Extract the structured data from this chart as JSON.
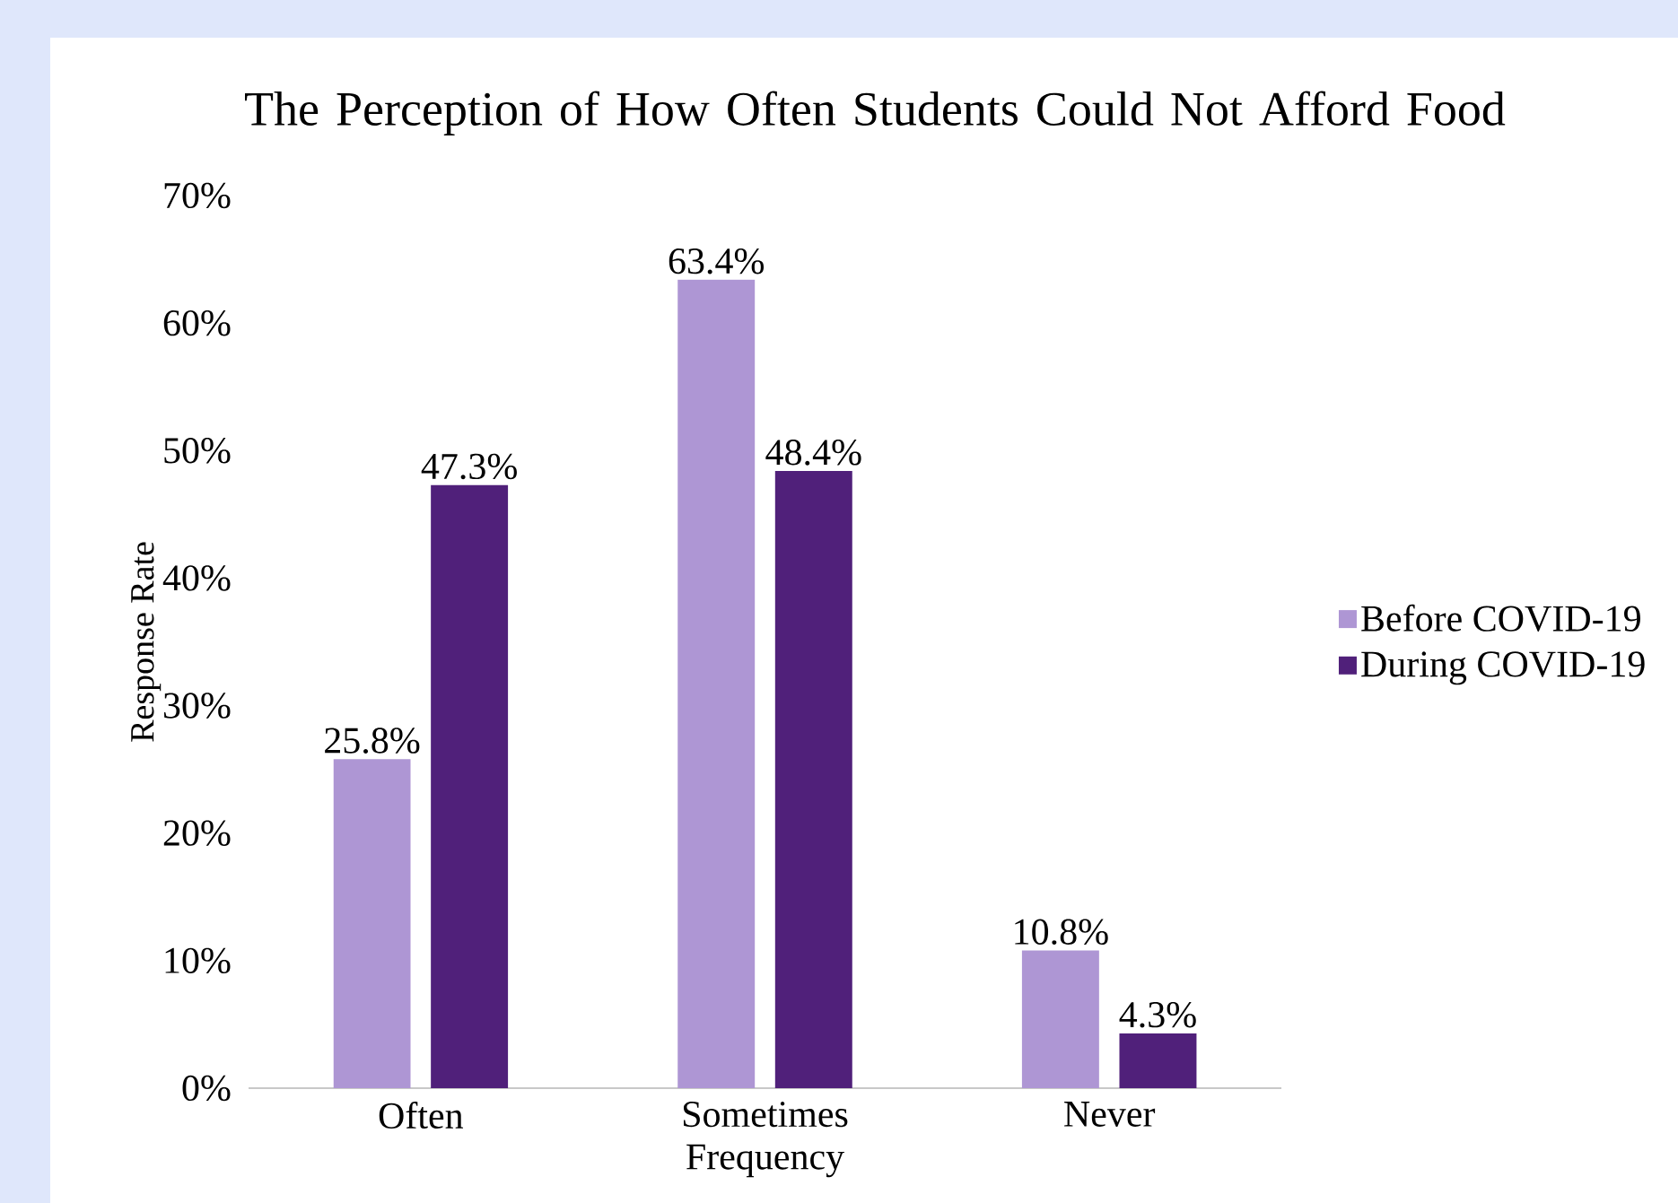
{
  "chart_data": {
    "type": "bar",
    "title": "The Perception of How Often Students Could Not Afford Food",
    "xlabel": "Frequency",
    "ylabel": "Response Rate",
    "categories": [
      "Often",
      "Sometimes",
      "Never"
    ],
    "series": [
      {
        "name": "Before COVID-19",
        "color": "#ae96d4",
        "values": [
          25.8,
          63.4,
          10.8
        ],
        "value_labels": [
          "25.8%",
          "63.4%",
          "10.8%"
        ]
      },
      {
        "name": "During COVID-19",
        "color": "#50207a",
        "values": [
          47.3,
          48.4,
          4.3
        ],
        "value_labels": [
          "47.3%",
          "48.4%",
          "4.3%"
        ]
      }
    ],
    "ylim": [
      0,
      70
    ],
    "yticks": [
      {
        "value": 0,
        "label": "0%"
      },
      {
        "value": 10,
        "label": "10%"
      },
      {
        "value": 20,
        "label": "20%"
      },
      {
        "value": 30,
        "label": "30%"
      },
      {
        "value": 40,
        "label": "40%"
      },
      {
        "value": 50,
        "label": "50%"
      },
      {
        "value": 60,
        "label": "60%"
      },
      {
        "value": 70,
        "label": "70%"
      }
    ],
    "grid": false,
    "legend": "right"
  }
}
